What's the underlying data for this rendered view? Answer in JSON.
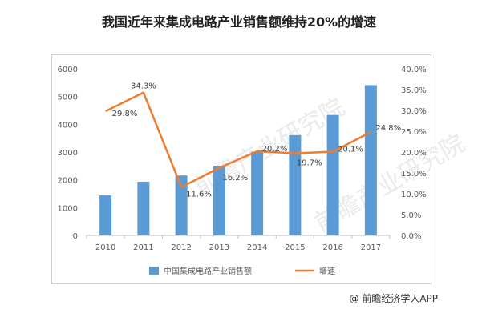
{
  "page_title": "我国近年来集成电路产业销售额维持20%的增速",
  "source_text": "@ 前瞻经济学人APP",
  "watermark_text": "前瞻产业研究院",
  "chart_data": {
    "type": "bar",
    "categories": [
      "2010",
      "2011",
      "2012",
      "2013",
      "2014",
      "2015",
      "2016",
      "2017"
    ],
    "series": [
      {
        "name": "中国集成电路产业销售额",
        "type": "bar",
        "axis": "left",
        "color": "#5b9bd5",
        "values": [
          1440,
          1933,
          2158,
          2509,
          3015,
          3610,
          4336,
          5411
        ]
      },
      {
        "name": "增速",
        "type": "line",
        "axis": "right",
        "color": "#ed7d31",
        "values": [
          29.8,
          34.3,
          11.6,
          16.2,
          20.2,
          19.7,
          20.1,
          24.8
        ],
        "labels": [
          "29.8%",
          "34.3%",
          "11.6%",
          "16.2%",
          "20.2%",
          "19.7%",
          "20.1%",
          "24.8%"
        ]
      }
    ],
    "ylim_left": [
      0,
      6000
    ],
    "yticks_left": [
      "0",
      "1000",
      "2000",
      "3000",
      "4000",
      "5000",
      "6000"
    ],
    "ylim_right": [
      0,
      40
    ],
    "yticks_right": [
      "0.0%",
      "5.0%",
      "10.0%",
      "15.0%",
      "20.0%",
      "25.0%",
      "30.0%",
      "35.0%",
      "40.0%"
    ],
    "legend_position": "bottom",
    "grid": false
  }
}
